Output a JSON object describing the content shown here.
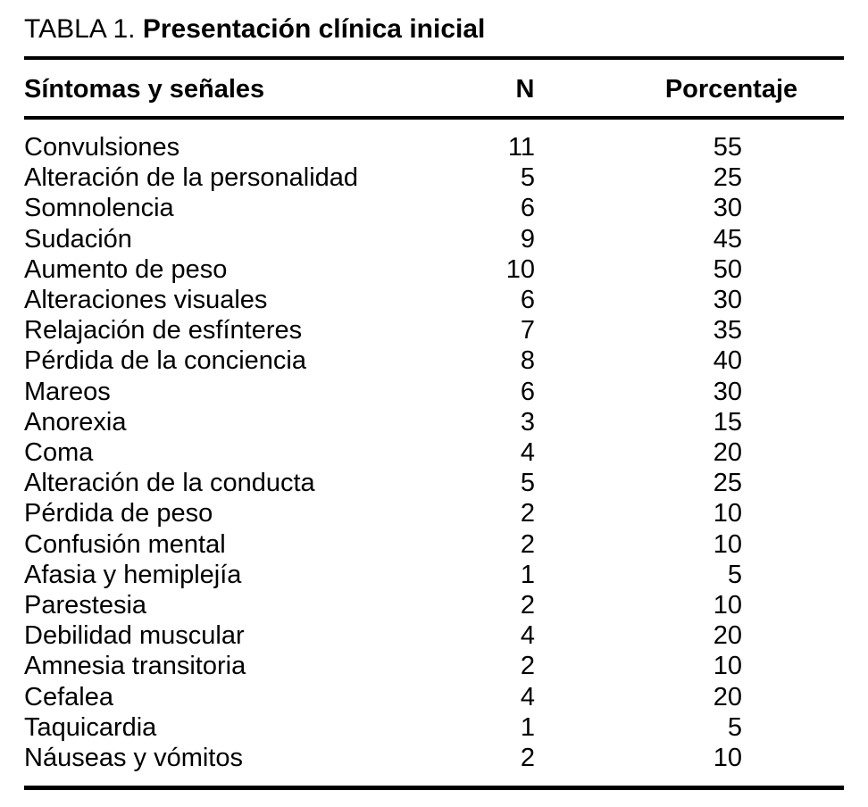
{
  "table": {
    "title_label": "TABLA 1.",
    "title_text": "Presentación clínica inicial",
    "columns": {
      "symptoms": "Síntomas y señales",
      "n": "N",
      "percentage": "Porcentaje"
    },
    "rows": [
      {
        "label": "Convulsiones",
        "n": "11",
        "pct": "55"
      },
      {
        "label": "Alteración de la personalidad",
        "n": "5",
        "pct": "25"
      },
      {
        "label": "Somnolencia",
        "n": "6",
        "pct": "30"
      },
      {
        "label": "Sudación",
        "n": "9",
        "pct": "45"
      },
      {
        "label": "Aumento de peso",
        "n": "10",
        "pct": "50"
      },
      {
        "label": "Alteraciones visuales",
        "n": "6",
        "pct": "30"
      },
      {
        "label": "Relajación de esfínteres",
        "n": "7",
        "pct": "35"
      },
      {
        "label": "Pérdida de la conciencia",
        "n": "8",
        "pct": "40"
      },
      {
        "label": "Mareos",
        "n": "6",
        "pct": "30"
      },
      {
        "label": "Anorexia",
        "n": "3",
        "pct": "15"
      },
      {
        "label": "Coma",
        "n": "4",
        "pct": "20"
      },
      {
        "label": "Alteración de la conducta",
        "n": "5",
        "pct": "25"
      },
      {
        "label": "Pérdida de peso",
        "n": "2",
        "pct": "10"
      },
      {
        "label": "Confusión mental",
        "n": "2",
        "pct": "10"
      },
      {
        "label": "Afasia y hemiplejía",
        "n": "1",
        "pct": "5"
      },
      {
        "label": "Parestesia",
        "n": "2",
        "pct": "10"
      },
      {
        "label": "Debilidad muscular",
        "n": "4",
        "pct": "20"
      },
      {
        "label": "Amnesia transitoria",
        "n": "2",
        "pct": "10"
      },
      {
        "label": "Cefalea",
        "n": "4",
        "pct": "20"
      },
      {
        "label": "Taquicardia",
        "n": "1",
        "pct": "5"
      },
      {
        "label": "Náuseas y vómitos",
        "n": "2",
        "pct": "10"
      }
    ],
    "colors": {
      "text": "#000000",
      "background": "#ffffff",
      "rule": "#000000"
    }
  }
}
